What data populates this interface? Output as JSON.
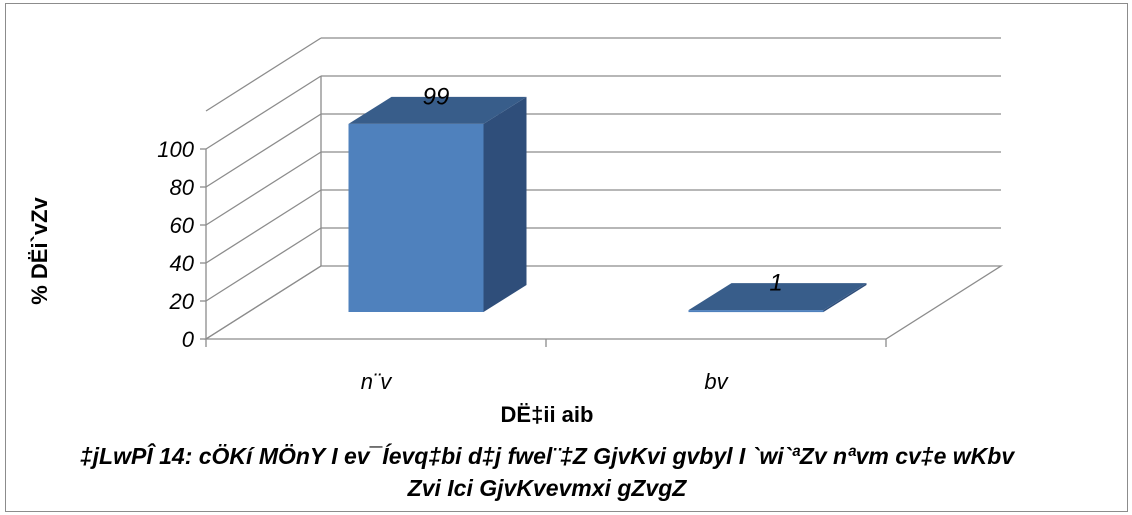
{
  "chart_data": {
    "type": "bar",
    "categories": [
      "n¨v",
      "bv"
    ],
    "values": [
      99,
      1
    ],
    "data_labels": [
      "99",
      "1"
    ],
    "yticks": [
      "0",
      "20",
      "40",
      "60",
      "80",
      "100"
    ],
    "ylim": [
      0,
      100
    ],
    "ylabel": "% DËi`vZv",
    "xlabel": "DË‡ii aib",
    "caption_line1": "‡jLwPÎ 14: cÖKí MÖnY I ev¯Íevq‡bi d‡j fwel¨‡Z GjvKvi gvbyl I `wi`ªZv nªvm cv‡e wKbv",
    "caption_line2": "Zvi Ici GjvKvevmxi gZvgZ",
    "bar_colors": {
      "front": "#4f81bd",
      "side": "#2f4e7a",
      "top": "#385d8a"
    },
    "grid": true
  }
}
